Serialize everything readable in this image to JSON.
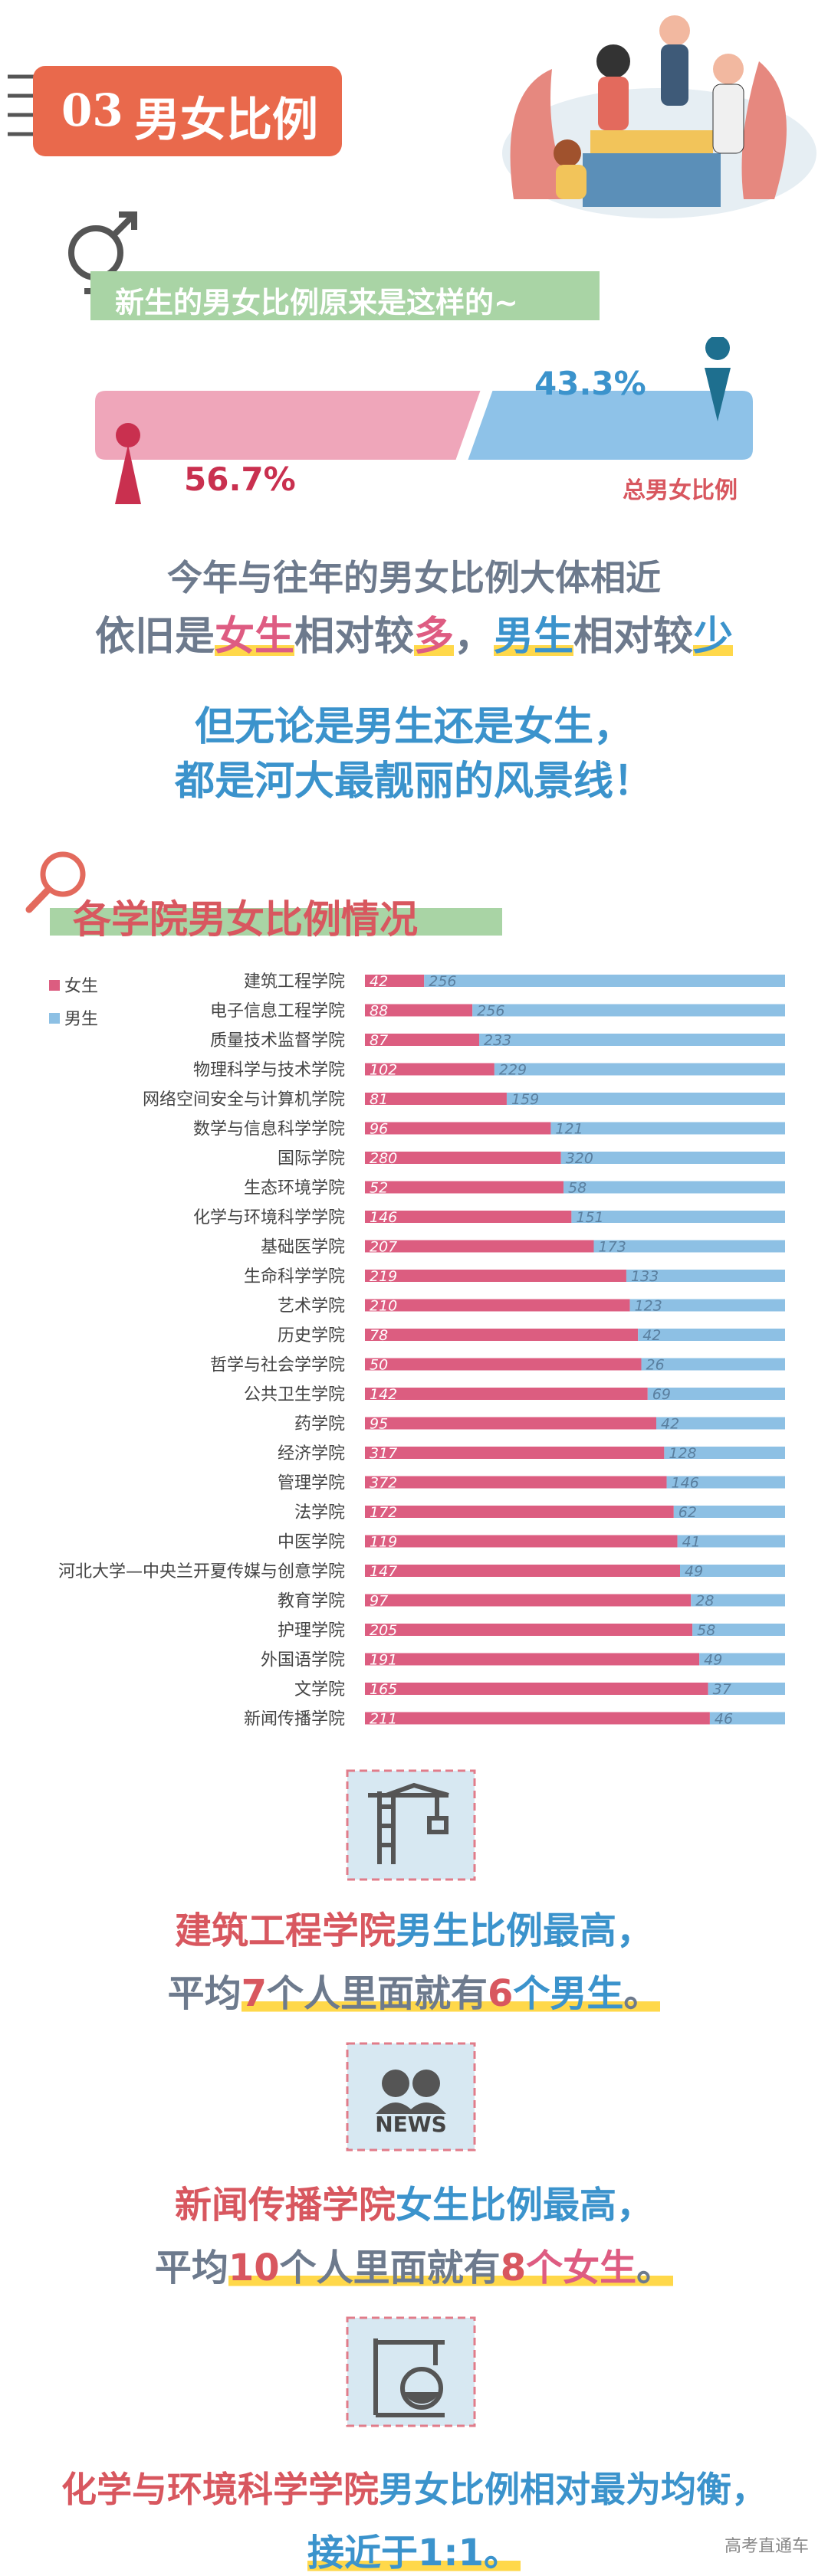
{
  "header": {
    "number": "03",
    "title": "男女比例"
  },
  "banner": "新生的男女比例原来是这样的~",
  "overall": {
    "title": "总男女比例",
    "names": [
      "女生",
      "男生"
    ],
    "colors": [
      "#efa6ba",
      "#8ec2e8"
    ],
    "values": [
      56.7,
      43.3
    ],
    "value_labels": [
      "56.7%",
      "43.3%"
    ]
  },
  "summary": {
    "line1": "今年与往年的男女比例大体相近",
    "line2": [
      "依旧是",
      "女生",
      "相对较",
      "多",
      "，",
      "男生",
      "相对较",
      "少"
    ],
    "line3": "但无论是男生还是女生，",
    "line4": "都是河大最靓丽的风景线！"
  },
  "section_title": "各学院男女比例情况",
  "chart_data": {
    "type": "bar",
    "orientation": "horizontal",
    "stacked": true,
    "percent": true,
    "categories": [
      "建筑工程学院",
      "电子信息工程学院",
      "质量技术监督学院",
      "物理科学与技术学院",
      "网络空间安全与计算机学院",
      "数学与信息科学学院",
      "国际学院",
      "生态环境学院",
      "化学与环境科学学院",
      "基础医学院",
      "生命科学学院",
      "艺术学院",
      "历史学院",
      "哲学与社会学学院",
      "公共卫生学院",
      "药学院",
      "经济学院",
      "管理学院",
      "法学院",
      "中医学院",
      "河北大学—中央兰开夏传媒与创意学院",
      "教育学院",
      "护理学院",
      "外国语学院",
      "文学院",
      "新闻传播学院"
    ],
    "series": [
      {
        "name": "女生",
        "color": "#dc5d80",
        "values": [
          42,
          88,
          87,
          102,
          81,
          96,
          280,
          52,
          146,
          207,
          219,
          210,
          78,
          50,
          142,
          95,
          317,
          372,
          172,
          119,
          147,
          97,
          205,
          191,
          165,
          211
        ]
      },
      {
        "name": "男生",
        "color": "#8dc0e4",
        "values": [
          256,
          256,
          233,
          229,
          159,
          121,
          320,
          58,
          151,
          173,
          133,
          123,
          42,
          26,
          69,
          42,
          128,
          146,
          62,
          41,
          49,
          28,
          58,
          49,
          37,
          46
        ]
      }
    ],
    "legend": "left"
  },
  "icons": {
    "news": "NEWS"
  },
  "conclusions": [
    {
      "line1": [
        "建筑工程学院",
        "男生比例最高",
        "，"
      ],
      "line2": [
        "平均",
        "7",
        "个人里面就有",
        "6",
        "个男生",
        "。"
      ]
    },
    {
      "line1": [
        "新闻传播学院",
        "女生比例最高",
        "，"
      ],
      "line2": [
        "平均",
        "10",
        "个人里面就有",
        "8",
        "个女生",
        "。"
      ]
    },
    {
      "line1": [
        "化学与环境科学学院",
        "男女比例相对最为均衡",
        "，"
      ],
      "line2": [
        "接近于",
        "1:1",
        "。"
      ]
    }
  ],
  "watermark": "高考直通车"
}
